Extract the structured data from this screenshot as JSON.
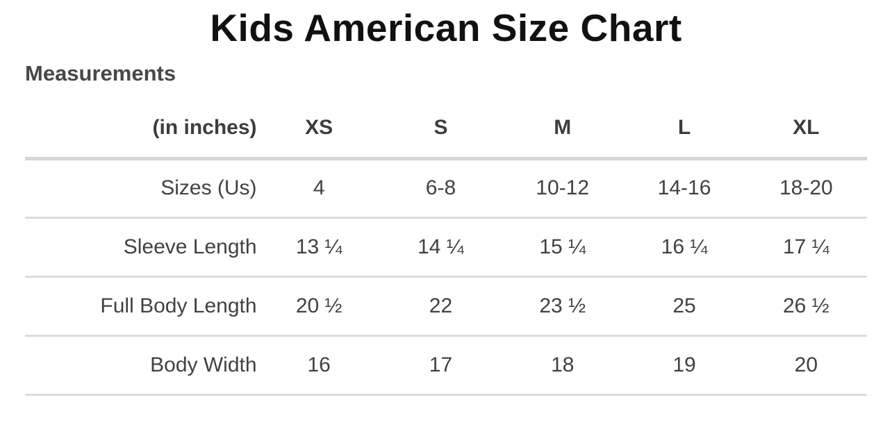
{
  "page": {
    "title": "Kids American Size Chart",
    "section_heading": "Measurements"
  },
  "chart_data": {
    "type": "table",
    "title": "Kids American Size Chart",
    "unit_label": "(in inches)",
    "columns": [
      "XS",
      "S",
      "M",
      "L",
      "XL"
    ],
    "rows": [
      {
        "label": "Sizes (Us)",
        "values": [
          "4",
          "6-8",
          "10-12",
          "14-16",
          "18-20"
        ]
      },
      {
        "label": "Sleeve Length",
        "values": [
          "13 ¼",
          "14 ¼",
          "15 ¼",
          "16 ¼",
          "17 ¼"
        ]
      },
      {
        "label": "Full Body Length",
        "values": [
          "20 ½",
          "22",
          "23 ½",
          "25",
          "26 ½"
        ]
      },
      {
        "label": "Body Width",
        "values": [
          "16",
          "17",
          "18",
          "19",
          "20"
        ]
      }
    ]
  },
  "colors": {
    "title_text": "#111111",
    "heading_text": "#474747",
    "header_text": "#3d3d3d",
    "cell_text": "#414141",
    "header_divider": "#d5d5d8",
    "row_divider": "#dcdcdf",
    "background": "#ffffff"
  }
}
